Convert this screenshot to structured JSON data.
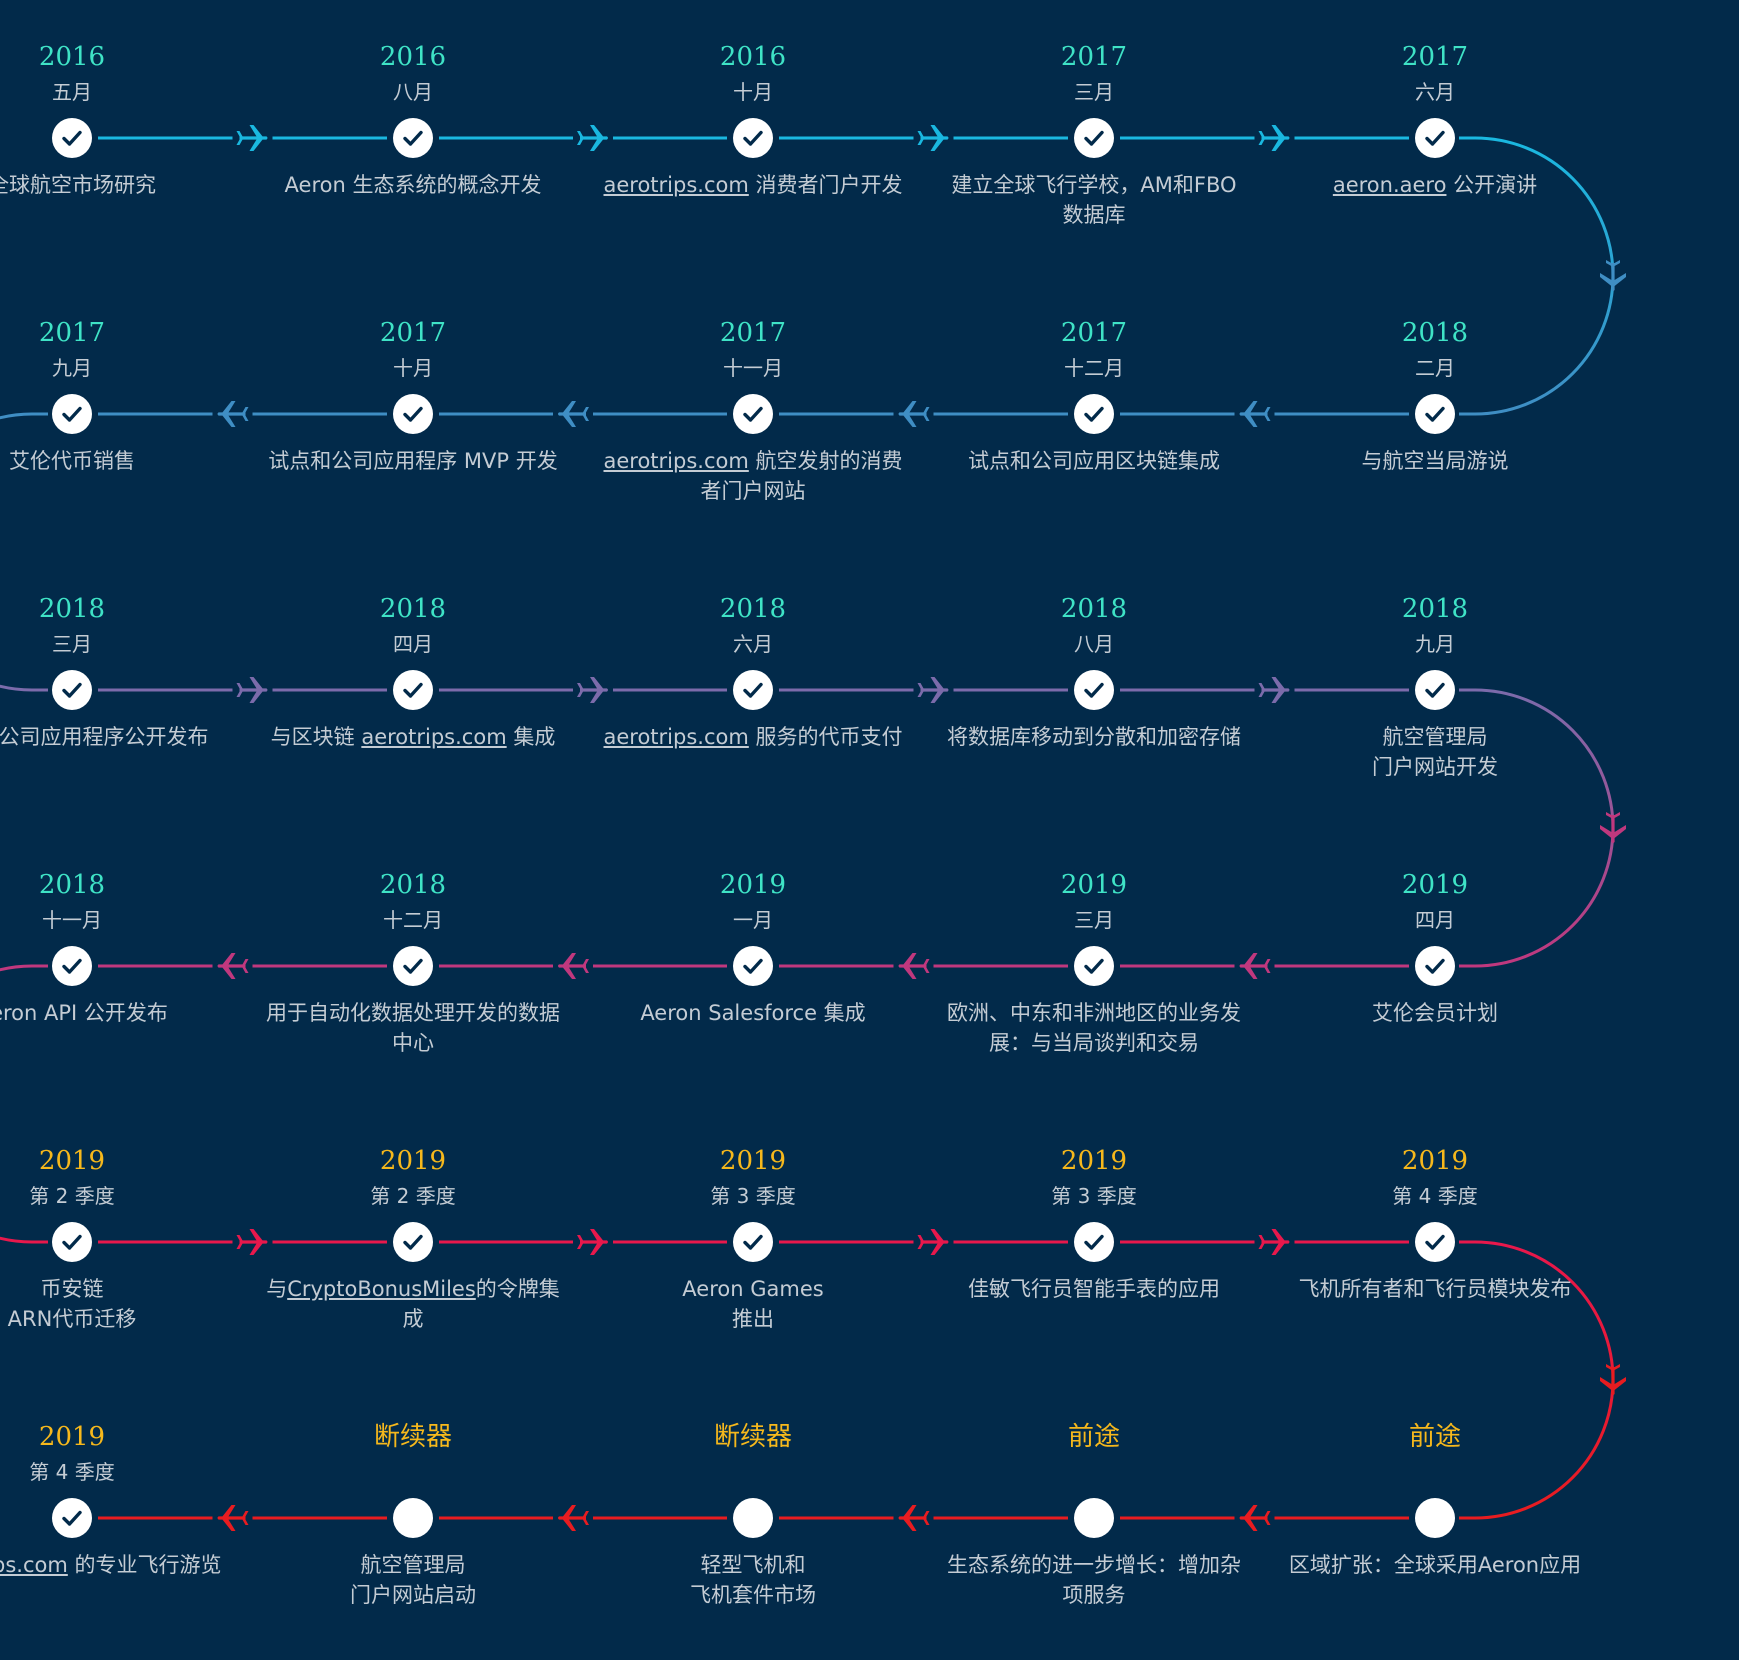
{
  "colors": {
    "background": "#022a4a",
    "year": "#3fe3c6",
    "future_heading": "#f6b81c",
    "row_lines": [
      "#1ab8e0",
      "#3f8ec4",
      "#7c6bab",
      "#c0387e",
      "#e8184c",
      "#e81c20"
    ]
  },
  "rows": [
    [
      {
        "year": "2016",
        "month": "五月",
        "description": "全球航空市场研究",
        "done": true
      },
      {
        "year": "2016",
        "month": "八月",
        "description": "Aeron 生态系统的概念开发",
        "done": true
      },
      {
        "year": "2016",
        "month": "十月",
        "link": "aerotrips.com",
        "description": " 消费者门户开发",
        "done": true
      },
      {
        "year": "2017",
        "month": "三月",
        "description": "建立全球飞行学校，AM和FBO数据库",
        "done": true
      },
      {
        "year": "2017",
        "month": "六月",
        "link": "aeron.aero",
        "description": " 公开演讲",
        "done": true
      }
    ],
    [
      {
        "year": "2018",
        "month": "二月",
        "description": "与航空当局游说",
        "done": true
      },
      {
        "year": "2017",
        "month": "十二月",
        "description": "试点和公司应用区块链集成",
        "done": true
      },
      {
        "year": "2017",
        "month": "十一月",
        "link": "aerotrips.com",
        "description": " 航空发射的消费者门户网站",
        "done": true
      },
      {
        "year": "2017",
        "month": "十月",
        "description": "试点和公司应用程序 MVP 开发",
        "done": true
      },
      {
        "year": "2017",
        "month": "九月",
        "description": "艾伦代币销售",
        "done": true
      }
    ],
    [
      {
        "year": "2018",
        "month": "三月",
        "description": "试点和公司应用程序公开发布",
        "done": true
      },
      {
        "year": "2018",
        "month": "四月",
        "prefix": "与区块链 ",
        "link": "aerotrips.com",
        "description": " 集成",
        "done": true
      },
      {
        "year": "2018",
        "month": "六月",
        "link": "aerotrips.com",
        "description": " 服务的代币支付",
        "done": true
      },
      {
        "year": "2018",
        "month": "八月",
        "description": "将数据库移动到分散和加密存储",
        "done": true
      },
      {
        "year": "2018",
        "month": "九月",
        "description": "航空管理局\n门户网站开发",
        "done": true
      }
    ],
    [
      {
        "year": "2019",
        "month": "四月",
        "description": "艾伦会员计划",
        "done": true
      },
      {
        "year": "2019",
        "month": "三月",
        "description": "欧洲、中东和非洲地区的业务发展：与当局谈判和交易",
        "done": true
      },
      {
        "year": "2019",
        "month": "一月",
        "description": "Aeron Salesforce 集成",
        "done": true
      },
      {
        "year": "2018",
        "month": "十二月",
        "description": "用于自动化数据处理开发的数据中心",
        "done": true
      },
      {
        "year": "2018",
        "month": "十一月",
        "description": "Aeron API 公开发布",
        "done": true
      }
    ],
    [
      {
        "year": "2019",
        "month": "第 2 季度",
        "description": "币安链\nARN代币迁移",
        "done": true,
        "future": true
      },
      {
        "year": "2019",
        "month": "第 2 季度",
        "prefix": "与",
        "link": "CryptoBonusMiles",
        "description": "的令牌集成",
        "done": true,
        "future": true
      },
      {
        "year": "2019",
        "month": "第 3 季度",
        "description": "Aeron Games\n推出",
        "done": true,
        "future": true
      },
      {
        "year": "2019",
        "month": "第 3 季度",
        "description": "佳敏飞行员智能手表的应用",
        "done": true,
        "future": true
      },
      {
        "year": "2019",
        "month": "第 4 季度",
        "description": "飞机所有者和飞行员模块发布",
        "done": true,
        "future": true
      }
    ],
    [
      {
        "year": "前途",
        "month": "",
        "description": "区域扩张：全球采用Aeron应用",
        "done": false,
        "future": true
      },
      {
        "year": "前途",
        "month": "",
        "description": "生态系统的进一步增长：增加杂项服务",
        "done": false,
        "future": true
      },
      {
        "year": "断续器",
        "month": "",
        "description": "轻型飞机和\n飞机套件市场",
        "done": false,
        "future": true
      },
      {
        "year": "断续器",
        "month": "",
        "description": "航空管理局\n门户网站启动",
        "done": false,
        "future": true
      },
      {
        "year": "2019",
        "month": "第 4 季度",
        "link": "aerotrips.com",
        "description": " 的专业飞行游览",
        "done": true,
        "future": true
      }
    ]
  ]
}
